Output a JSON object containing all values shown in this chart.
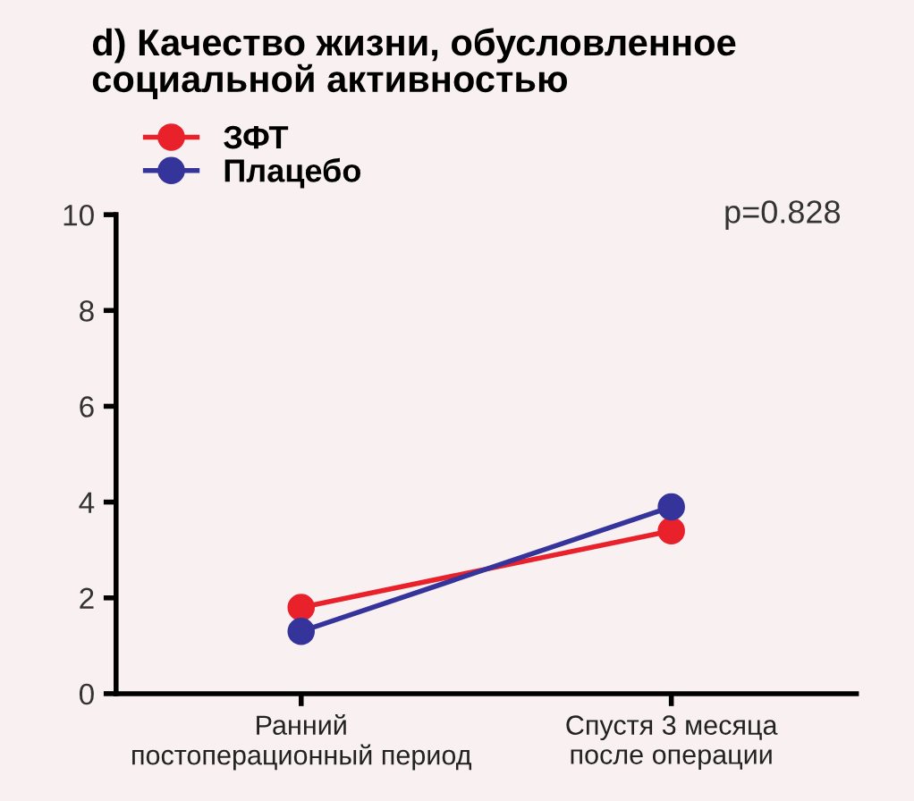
{
  "chart_data": {
    "type": "line",
    "title": "d) Качество жизни, обусловленное\nсоциальной активностью",
    "categories": [
      "Ранний\nпостоперационный период",
      "Спустя 3 месяца\nпосле операции"
    ],
    "series": [
      {
        "name": "ЗФТ",
        "color": "#e8212b",
        "values": [
          1.8,
          3.4
        ]
      },
      {
        "name": "Плацебо",
        "color": "#35349a",
        "values": [
          1.3,
          3.9
        ]
      }
    ],
    "ylim": [
      0,
      10
    ],
    "yticks": [
      0,
      2,
      4,
      6,
      8,
      10
    ],
    "grid": false,
    "legend": "top left",
    "marker": "circle",
    "line_style": "solid",
    "annotations": [
      "p=0.828"
    ]
  }
}
